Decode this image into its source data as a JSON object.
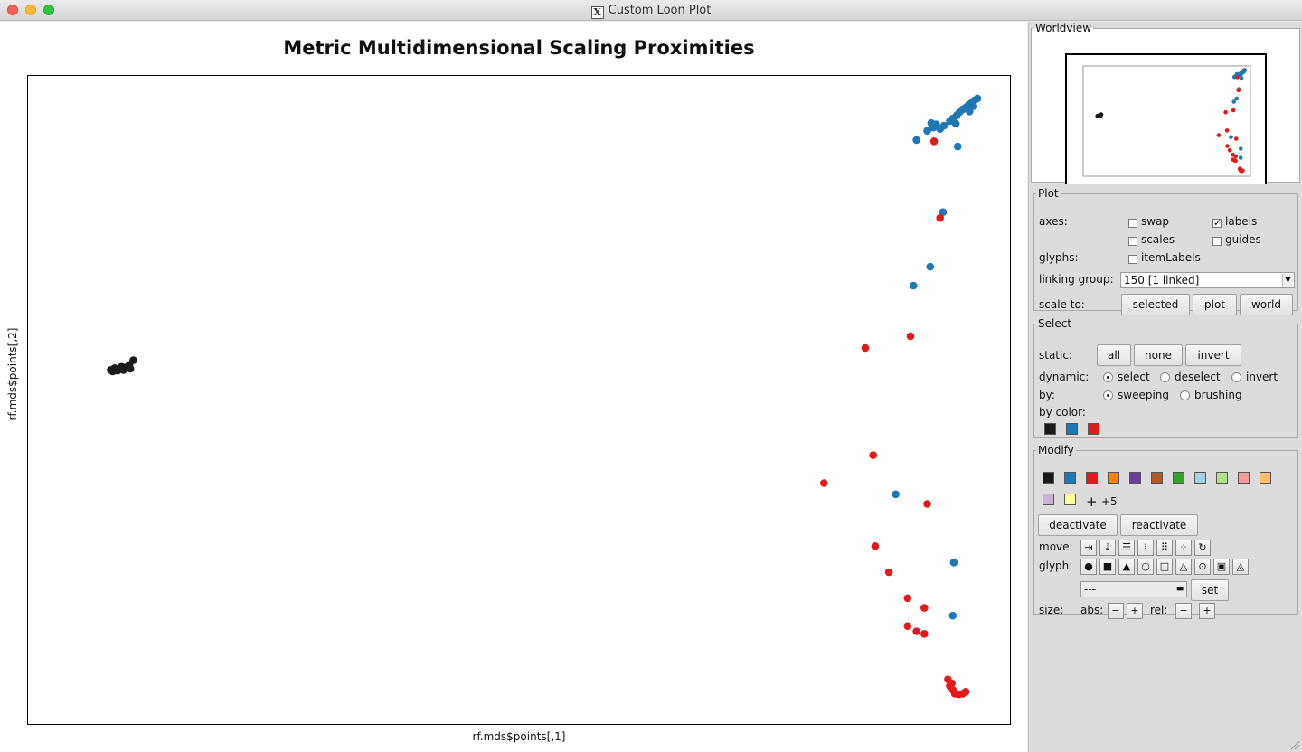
{
  "window": {
    "title": "Custom Loon Plot"
  },
  "plot": {
    "title": "Metric Multidimensional Scaling Proximities",
    "xlabel": "rf.mds$points[,1]",
    "ylabel": "rf.mds$points[,2]"
  },
  "chart_data": {
    "type": "scatter",
    "title": "Metric Multidimensional Scaling Proximities",
    "xlabel": "rf.mds$points[,1]",
    "ylabel": "rf.mds$points[,2]",
    "grid": false,
    "series": [
      {
        "color": "#1a1a1a",
        "points": [
          [
            0.085,
            -0.454
          ],
          [
            0.087,
            -0.456
          ],
          [
            0.089,
            -0.451
          ],
          [
            0.092,
            -0.455
          ],
          [
            0.098,
            -0.454
          ],
          [
            0.1,
            -0.45
          ],
          [
            0.104,
            -0.446
          ],
          [
            0.105,
            -0.452
          ],
          [
            0.108,
            -0.439
          ],
          [
            0.09,
            -0.453
          ],
          [
            0.096,
            -0.449
          ]
        ]
      },
      {
        "color": "#1f78b4",
        "points": [
          [
            0.915,
            -0.086
          ],
          [
            0.919,
            -0.074
          ],
          [
            0.921,
            -0.081
          ],
          [
            0.924,
            -0.076
          ],
          [
            0.928,
            -0.083
          ],
          [
            0.932,
            -0.078
          ],
          [
            0.938,
            -0.071
          ],
          [
            0.941,
            -0.067
          ],
          [
            0.945,
            -0.062
          ],
          [
            0.948,
            -0.057
          ],
          [
            0.951,
            -0.053
          ],
          [
            0.954,
            -0.05
          ],
          [
            0.957,
            -0.046
          ],
          [
            0.96,
            -0.043
          ],
          [
            0.963,
            -0.039
          ],
          [
            0.966,
            -0.036
          ],
          [
            0.944,
            -0.075
          ],
          [
            0.958,
            -0.056
          ],
          [
            0.962,
            -0.048
          ],
          [
            0.904,
            -0.1
          ],
          [
            0.946,
            -0.11
          ],
          [
            0.931,
            -0.211
          ],
          [
            0.901,
            -0.324
          ],
          [
            0.918,
            -0.295
          ],
          [
            0.942,
            -0.75
          ],
          [
            0.941,
            -0.832
          ],
          [
            0.883,
            -0.645
          ]
        ]
      },
      {
        "color": "#e31a1c",
        "points": [
          [
            0.922,
            -0.102
          ],
          [
            0.928,
            -0.22
          ],
          [
            0.898,
            -0.402
          ],
          [
            0.852,
            -0.42
          ],
          [
            0.86,
            -0.585
          ],
          [
            0.81,
            -0.628
          ],
          [
            0.915,
            -0.66
          ],
          [
            0.862,
            -0.725
          ],
          [
            0.876,
            -0.765
          ],
          [
            0.895,
            -0.805
          ],
          [
            0.912,
            -0.82
          ],
          [
            0.895,
            -0.848
          ],
          [
            0.904,
            -0.856
          ],
          [
            0.912,
            -0.86
          ],
          [
            0.936,
            -0.93
          ],
          [
            0.938,
            -0.94
          ],
          [
            0.941,
            -0.946
          ],
          [
            0.943,
            -0.952
          ],
          [
            0.947,
            -0.953
          ],
          [
            0.951,
            -0.952
          ],
          [
            0.954,
            -0.949
          ],
          [
            0.94,
            -0.936
          ]
        ]
      }
    ]
  },
  "worldview": {
    "legend": "Worldview"
  },
  "plot_panel": {
    "legend": "Plot",
    "axes_label": "axes:",
    "swap": "swap",
    "labels": "labels",
    "scales": "scales",
    "guides": "guides",
    "glyphs_label": "glyphs:",
    "item_labels": "itemLabels",
    "linking_label": "linking group:",
    "linking_value": "150  [1 linked]",
    "scale_label": "scale to:",
    "scale_selected": "selected",
    "scale_plot": "plot",
    "scale_world": "world",
    "labels_checked": true
  },
  "select_panel": {
    "legend": "Select",
    "static_label": "static:",
    "all": "all",
    "none": "none",
    "invert": "invert",
    "dynamic_label": "dynamic:",
    "dyn_select": "select",
    "dyn_deselect": "deselect",
    "dyn_invert": "invert",
    "by_label": "by:",
    "by_sweeping": "sweeping",
    "by_brushing": "brushing",
    "by_color_label": "by color:",
    "colors": [
      "#1a1a1a",
      "#1f78b4",
      "#e31a1c"
    ]
  },
  "modify_panel": {
    "legend": "Modify",
    "colors": [
      "#1a1a1a",
      "#1f78b4",
      "#e31a1c",
      "#ff7f00",
      "#6a3d9a",
      "#b15928",
      "#33a02c",
      "#a6cee3",
      "#b2df8a",
      "#fb9a99",
      "#fdbf6f",
      "#cab2d6",
      "#ffff99"
    ],
    "plus_label": "+5",
    "deactivate": "deactivate",
    "reactivate": "reactivate",
    "move_label": "move:",
    "glyph_label": "glyph:",
    "glyph_select_value": "---",
    "set": "set",
    "size_label": "size:",
    "abs_label": "abs:",
    "rel_label": "rel:",
    "minus": "−",
    "plus": "+"
  }
}
